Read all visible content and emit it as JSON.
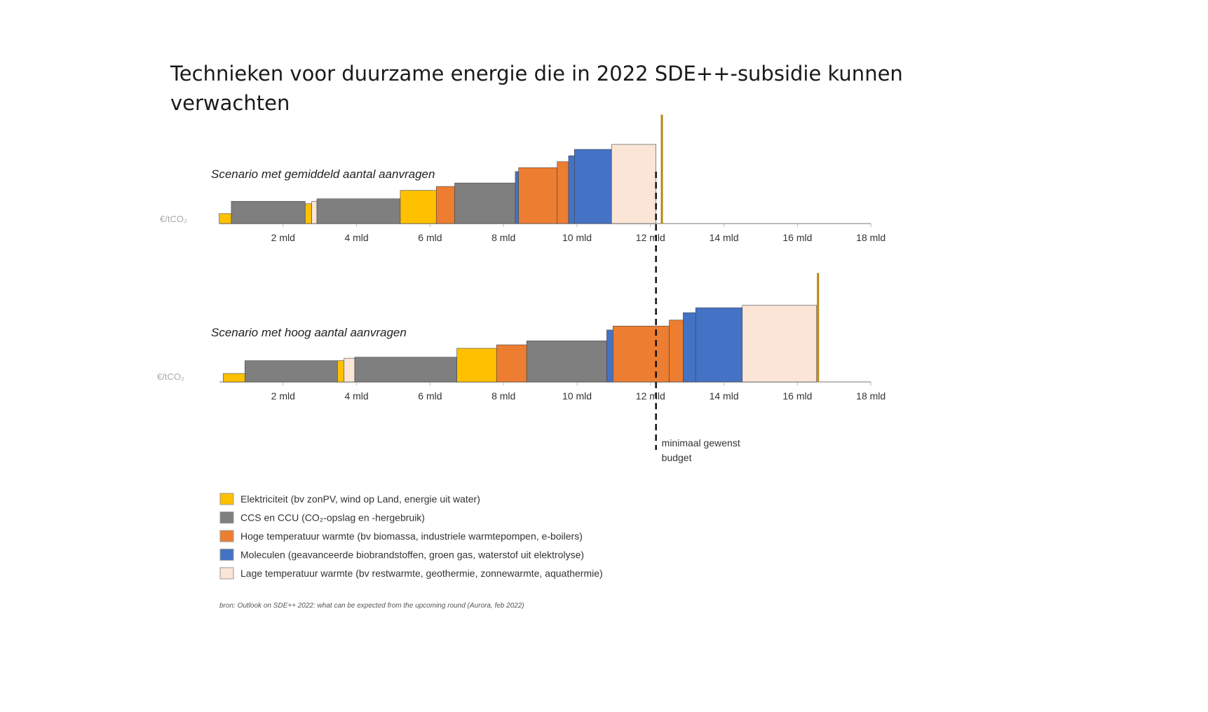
{
  "title_lines": [
    "Technieken voor duurzame energie die in 2022 SDE++-subsidie kunnen",
    "verwachten"
  ],
  "colors": {
    "elektriciteit": "#FFC000",
    "ccs": "#7F7F7F",
    "hoge_temp": "#ED7D31",
    "moleculen": "#4472C4",
    "lage_temp": "#FBE5D6",
    "budget_marker": "#B8860B"
  },
  "chart_data": [
    {
      "type": "bar",
      "subtitle": "Scenario met gemiddeld aantal aanvragen",
      "ylabel": "€/tCO₂",
      "x_ticks": [
        "2 mld",
        "4 mld",
        "6 mld",
        "8 mld",
        "10 mld",
        "12 mld",
        "14 mld",
        "16 mld",
        "18 mld"
      ],
      "xlim": [
        0,
        18
      ],
      "segments": [
        {
          "cat": "elektriciteit",
          "x0": 0.26,
          "x1": 0.59,
          "y": 20
        },
        {
          "cat": "ccs",
          "x0": 0.59,
          "x1": 2.6,
          "y": 45
        },
        {
          "cat": "elektriciteit",
          "x0": 2.6,
          "x1": 2.78,
          "y": 40
        },
        {
          "cat": "lage_temp",
          "x0": 2.78,
          "x1": 2.92,
          "y": 45
        },
        {
          "cat": "ccs",
          "x0": 2.92,
          "x1": 5.19,
          "y": 50
        },
        {
          "cat": "elektriciteit",
          "x0": 5.19,
          "x1": 6.17,
          "y": 67
        },
        {
          "cat": "hoge_temp",
          "x0": 6.17,
          "x1": 6.67,
          "y": 75
        },
        {
          "cat": "ccs",
          "x0": 6.67,
          "x1": 8.32,
          "y": 82
        },
        {
          "cat": "moleculen",
          "x0": 8.32,
          "x1": 8.41,
          "y": 105
        },
        {
          "cat": "hoge_temp",
          "x0": 8.41,
          "x1": 9.46,
          "y": 113
        },
        {
          "cat": "hoge_temp",
          "x0": 9.46,
          "x1": 9.77,
          "y": 125
        },
        {
          "cat": "moleculen",
          "x0": 9.77,
          "x1": 9.93,
          "y": 137
        },
        {
          "cat": "moleculen",
          "x0": 9.93,
          "x1": 10.94,
          "y": 150
        },
        {
          "cat": "lage_temp",
          "x0": 10.94,
          "x1": 12.15,
          "y": 160
        }
      ],
      "end_marker": {
        "x": 12.31,
        "y": 220
      }
    },
    {
      "type": "bar",
      "subtitle": "Scenario met hoog aantal aanvragen",
      "ylabel": "€/tCO₂",
      "x_ticks": [
        "2 mld",
        "4 mld",
        "6 mld",
        "8 mld",
        "10 mld",
        "12 mld",
        "14 mld",
        "16 mld",
        "18 mld"
      ],
      "xlim": [
        0,
        18
      ],
      "segments": [
        {
          "cat": "elektriciteit",
          "x0": 0.37,
          "x1": 0.96,
          "y": 17
        },
        {
          "cat": "ccs",
          "x0": 0.96,
          "x1": 3.48,
          "y": 43
        },
        {
          "cat": "elektriciteit",
          "x0": 3.48,
          "x1": 3.66,
          "y": 43
        },
        {
          "cat": "lage_temp",
          "x0": 3.66,
          "x1": 3.95,
          "y": 48
        },
        {
          "cat": "ccs",
          "x0": 3.95,
          "x1": 6.73,
          "y": 50
        },
        {
          "cat": "elektriciteit",
          "x0": 6.73,
          "x1": 7.81,
          "y": 68
        },
        {
          "cat": "hoge_temp",
          "x0": 7.81,
          "x1": 8.63,
          "y": 75
        },
        {
          "cat": "ccs",
          "x0": 8.63,
          "x1": 10.81,
          "y": 83
        },
        {
          "cat": "moleculen",
          "x0": 10.81,
          "x1": 10.98,
          "y": 105
        },
        {
          "cat": "hoge_temp",
          "x0": 10.98,
          "x1": 12.51,
          "y": 113
        },
        {
          "cat": "hoge_temp",
          "x0": 12.51,
          "x1": 12.89,
          "y": 125
        },
        {
          "cat": "moleculen",
          "x0": 12.89,
          "x1": 13.23,
          "y": 140
        },
        {
          "cat": "moleculen",
          "x0": 13.23,
          "x1": 14.5,
          "y": 150
        },
        {
          "cat": "lage_temp",
          "x0": 14.5,
          "x1": 16.52,
          "y": 155
        }
      ],
      "end_marker": {
        "x": 16.56,
        "y": 220
      }
    }
  ],
  "budget_line": {
    "x": 12.15,
    "label_lines": [
      "minimaal gewenst",
      "budget"
    ]
  },
  "legend": [
    {
      "cat": "elektriciteit",
      "label": "Elektriciteit (bv zonPV, wind op Land, energie uit water)"
    },
    {
      "cat": "ccs",
      "label": "CCS en CCU (CO₂-opslag en -hergebruik)"
    },
    {
      "cat": "hoge_temp",
      "label": "Hoge temperatuur warmte (bv biomassa, industriele warmtepompen, e-boilers)"
    },
    {
      "cat": "moleculen",
      "label": "Moleculen (geavanceerde biobrandstoffen, groen gas, waterstof uit elektrolyse)"
    },
    {
      "cat": "lage_temp",
      "label": "Lage temperatuur warmte (bv restwarmte, geothermie, zonnewarmte, aquathermie)"
    }
  ],
  "source": "bron: Outlook on SDE++ 2022: what can be expected from the upcoming round (Aurora, feb 2022)"
}
